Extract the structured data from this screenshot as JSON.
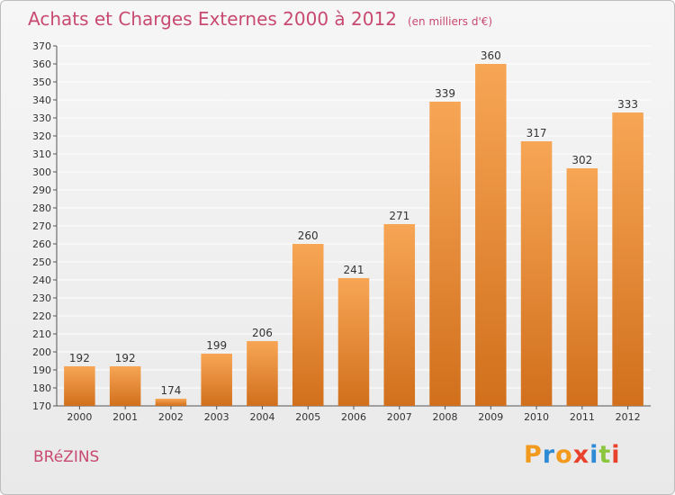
{
  "header": {
    "title": "Achats et Charges Externes 2000 à 2012",
    "subtitle": "(en milliers d'€)"
  },
  "footer": {
    "commune": "BRéZINS",
    "logo_text": "Proxiti"
  },
  "colors": {
    "title": "#c84a70",
    "bar_top": "#f7a655",
    "bar_bottom": "#d16f1c",
    "grid": "#ffffff",
    "logo": [
      "#f29a1e",
      "#2f8bd6",
      "#f29a1e",
      "#e8412c",
      "#2f8bd6",
      "#8cc63e",
      "#e8412c"
    ]
  },
  "chart_data": {
    "type": "bar",
    "categories": [
      "2000",
      "2001",
      "2002",
      "2003",
      "2004",
      "2005",
      "2006",
      "2007",
      "2008",
      "2009",
      "2010",
      "2011",
      "2012"
    ],
    "values": [
      192,
      192,
      174,
      199,
      206,
      260,
      241,
      271,
      339,
      360,
      317,
      302,
      333
    ],
    "ylim": [
      170,
      370
    ],
    "yticks": [
      170,
      180,
      190,
      200,
      210,
      220,
      230,
      240,
      250,
      260,
      270,
      280,
      290,
      300,
      310,
      320,
      330,
      340,
      350,
      360,
      370
    ],
    "grid": true,
    "data_labels": true
  }
}
